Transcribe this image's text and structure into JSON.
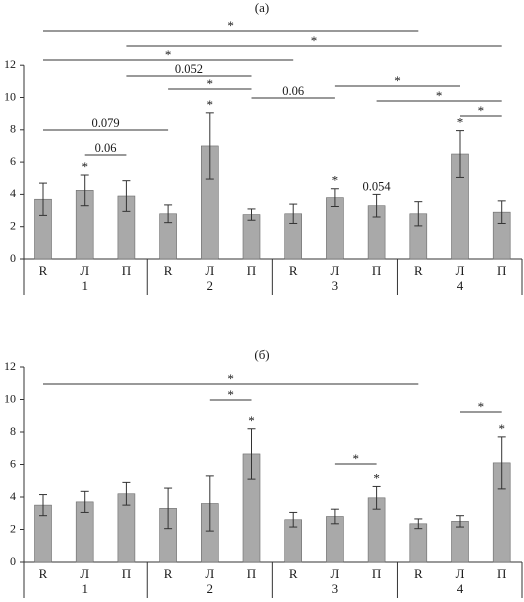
{
  "chart_data": [
    {
      "type": "bar",
      "title": "(а)",
      "ylim": [
        0,
        12
      ],
      "yticks": [
        "0",
        "2",
        "4",
        "6",
        "8",
        "10",
        "12"
      ],
      "grid": false,
      "categories": [
        "R",
        "Л",
        "П",
        "R",
        "Л",
        "П",
        "R",
        "Л",
        "П",
        "R",
        "Л",
        "П"
      ],
      "groups": [
        "1",
        "2",
        "3",
        "4"
      ],
      "values": [
        3.7,
        4.25,
        3.9,
        2.8,
        7.0,
        2.75,
        2.8,
        3.8,
        3.3,
        2.8,
        6.5,
        2.9
      ],
      "errors": [
        1.0,
        0.95,
        0.95,
        0.55,
        2.05,
        0.35,
        0.6,
        0.55,
        0.7,
        0.75,
        1.45,
        0.7
      ],
      "bar_stars": [
        "",
        "*",
        "",
        "",
        "*",
        "",
        "",
        "*",
        "",
        "",
        "*",
        ""
      ],
      "brackets": [
        {
          "from": 0,
          "to": 9,
          "label": "*"
        },
        {
          "from": 2,
          "to": 11,
          "label": "*"
        },
        {
          "from": 0,
          "to": 6,
          "label": "*"
        },
        {
          "from": 2,
          "to": 5,
          "label": "0.052"
        },
        {
          "from": 5,
          "to": 7,
          "label": "0.06"
        },
        {
          "from": 5,
          "to": 3,
          "label": "*"
        },
        {
          "from": 0,
          "to": 3,
          "label": "0.079"
        },
        {
          "from": 1,
          "to": 2,
          "label": "0.06"
        },
        {
          "from": 7,
          "to": 10,
          "label": "*"
        },
        {
          "from": 8,
          "to": 11,
          "label": "*"
        },
        {
          "from": 10,
          "to": 11,
          "label": "*"
        }
      ],
      "free_labels": [
        {
          "at": 8,
          "label": "0.054"
        }
      ]
    },
    {
      "type": "bar",
      "title": "(б)",
      "ylim": [
        0,
        12
      ],
      "yticks": [
        "0",
        "2",
        "4",
        "6",
        "8",
        "10",
        "12"
      ],
      "grid": false,
      "categories": [
        "R",
        "Л",
        "П",
        "R",
        "Л",
        "П",
        "R",
        "Л",
        "П",
        "R",
        "Л",
        "П"
      ],
      "groups": [
        "1",
        "2",
        "3",
        "4"
      ],
      "values": [
        3.5,
        3.7,
        4.2,
        3.3,
        3.6,
        6.65,
        2.6,
        2.8,
        3.95,
        2.35,
        2.5,
        6.1
      ],
      "errors": [
        0.65,
        0.65,
        0.7,
        1.25,
        1.7,
        1.55,
        0.45,
        0.45,
        0.7,
        0.3,
        0.35,
        1.6
      ],
      "bar_stars": [
        "",
        "",
        "",
        "",
        "",
        "*",
        "",
        "",
        "*",
        "",
        "",
        "*"
      ],
      "brackets": [
        {
          "from": 0,
          "to": 9,
          "label": "*"
        },
        {
          "from": 4,
          "to": 5,
          "label": "*"
        },
        {
          "from": 7,
          "to": 8,
          "label": "*"
        },
        {
          "from": 10,
          "to": 11,
          "label": "*"
        }
      ],
      "free_labels": []
    }
  ]
}
